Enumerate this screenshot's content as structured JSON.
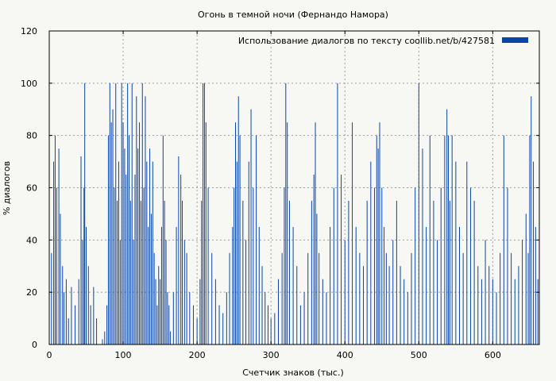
{
  "chart_data": {
    "type": "bar",
    "title": "Огонь в темной ночи (Фернандо Намора)",
    "xlabel": "Счетчик знаков (тыс.)",
    "ylabel": "% диалогов",
    "xlim": [
      0,
      663
    ],
    "ylim": [
      0,
      120
    ],
    "xticks": [
      "0",
      "100",
      "200",
      "300",
      "400",
      "500",
      "600"
    ],
    "xtick_values": [
      0,
      100,
      200,
      300,
      400,
      500,
      600
    ],
    "yticks": [
      "0",
      "20",
      "40",
      "60",
      "80",
      "100",
      "120"
    ],
    "ytick_values": [
      0,
      20,
      40,
      60,
      80,
      100,
      120
    ],
    "grid": true,
    "legend_position": "top-right",
    "color": "#0a46a8",
    "series": [
      {
        "name": "Использование диалогов по тексту  coollib.net/b/427581",
        "bar_width": 1,
        "x": [
          3,
          6,
          8,
          10,
          13,
          15,
          18,
          20,
          23,
          26,
          30,
          35,
          40,
          43,
          45,
          47,
          48,
          50,
          53,
          56,
          60,
          64,
          72,
          75,
          78,
          80,
          82,
          84,
          86,
          88,
          90,
          92,
          94,
          96,
          98,
          100,
          102,
          104,
          106,
          108,
          110,
          112,
          114,
          116,
          118,
          120,
          122,
          124,
          126,
          128,
          130,
          132,
          134,
          136,
          138,
          140,
          142,
          144,
          146,
          148,
          150,
          152,
          154,
          156,
          158,
          160,
          162,
          164,
          168,
          172,
          175,
          178,
          180,
          183,
          186,
          190,
          195,
          200,
          204,
          206,
          208,
          210,
          212,
          215,
          220,
          225,
          230,
          235,
          240,
          244,
          248,
          250,
          252,
          254,
          256,
          258,
          262,
          266,
          270,
          273,
          276,
          280,
          284,
          288,
          292,
          296,
          300,
          305,
          310,
          315,
          318,
          320,
          322,
          325,
          330,
          335,
          340,
          345,
          350,
          355,
          358,
          360,
          362,
          365,
          370,
          375,
          380,
          385,
          390,
          395,
          400,
          405,
          410,
          415,
          420,
          425,
          430,
          435,
          440,
          443,
          445,
          447,
          450,
          453,
          456,
          460,
          465,
          470,
          475,
          480,
          485,
          490,
          495,
          500,
          505,
          510,
          515,
          520,
          525,
          530,
          535,
          538,
          540,
          542,
          545,
          550,
          555,
          560,
          565,
          570,
          575,
          580,
          585,
          590,
          595,
          600,
          605,
          610,
          615,
          620,
          625,
          630,
          635,
          640,
          645,
          648,
          650,
          652,
          655,
          658,
          661
        ],
        "values": [
          35,
          70,
          80,
          60,
          75,
          50,
          30,
          20,
          25,
          10,
          22,
          15,
          25,
          72,
          40,
          60,
          100,
          45,
          30,
          15,
          22,
          10,
          2,
          5,
          15,
          80,
          100,
          85,
          90,
          60,
          100,
          55,
          70,
          40,
          100,
          85,
          75,
          65,
          100,
          80,
          55,
          100,
          40,
          65,
          95,
          75,
          85,
          55,
          100,
          60,
          95,
          70,
          45,
          75,
          50,
          70,
          35,
          25,
          15,
          30,
          25,
          45,
          80,
          55,
          40,
          20,
          15,
          5,
          20,
          45,
          72,
          65,
          55,
          40,
          35,
          20,
          15,
          10,
          25,
          55,
          100,
          100,
          85,
          60,
          35,
          25,
          15,
          12,
          20,
          35,
          45,
          60,
          85,
          70,
          95,
          80,
          55,
          40,
          70,
          90,
          60,
          80,
          45,
          30,
          20,
          15,
          10,
          12,
          25,
          35,
          60,
          100,
          85,
          55,
          45,
          30,
          15,
          20,
          35,
          55,
          65,
          85,
          50,
          35,
          25,
          20,
          45,
          60,
          100,
          65,
          40,
          55,
          85,
          45,
          35,
          30,
          55,
          70,
          60,
          80,
          75,
          85,
          60,
          45,
          35,
          30,
          40,
          55,
          30,
          25,
          20,
          35,
          60,
          100,
          75,
          45,
          80,
          55,
          40,
          60,
          80,
          90,
          80,
          55,
          80,
          70,
          45,
          35,
          70,
          60,
          55,
          30,
          25,
          40,
          30,
          25,
          20,
          35,
          80,
          60,
          35,
          25,
          30,
          40,
          50,
          35,
          80,
          95,
          70,
          45,
          25
        ]
      }
    ]
  }
}
